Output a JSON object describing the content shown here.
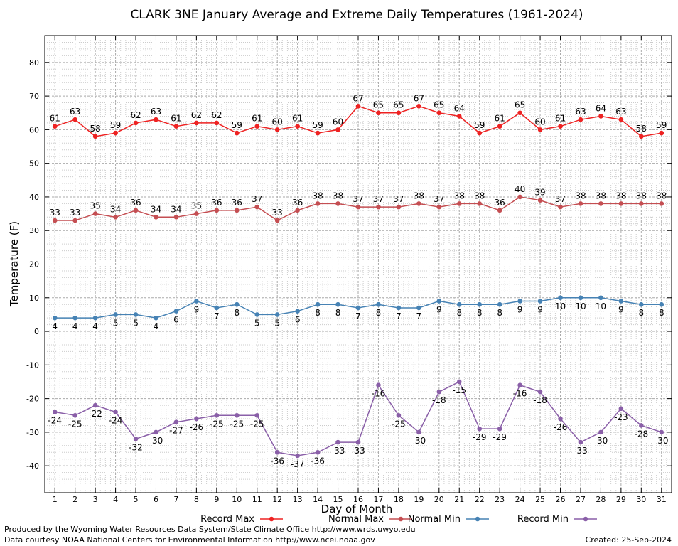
{
  "chart_data": {
    "type": "line",
    "title": "CLARK 3NE January Average and Extreme Daily Temperatures (1961-2024)",
    "xlabel": "Day of Month",
    "ylabel": "Temperature (F)",
    "xlim": [
      0.5,
      31.5
    ],
    "ylim": [
      -48,
      88
    ],
    "yticks": [
      -40,
      -30,
      -20,
      -10,
      0,
      10,
      20,
      30,
      40,
      50,
      60,
      70,
      80
    ],
    "x": [
      1,
      2,
      3,
      4,
      5,
      6,
      7,
      8,
      9,
      10,
      11,
      12,
      13,
      14,
      15,
      16,
      17,
      18,
      19,
      20,
      21,
      22,
      23,
      24,
      25,
      26,
      27,
      28,
      29,
      30,
      31
    ],
    "grid": true,
    "legend_position": "bottom",
    "series": [
      {
        "name": "Record Max",
        "color": "#ee2222",
        "values": [
          61,
          63,
          58,
          59,
          62,
          63,
          61,
          62,
          62,
          59,
          61,
          60,
          61,
          59,
          60,
          67,
          65,
          65,
          67,
          65,
          64,
          59,
          61,
          65,
          60,
          61,
          63,
          64,
          63,
          58,
          59
        ]
      },
      {
        "name": "Normal Max",
        "color": "#c44e52",
        "values": [
          33,
          33,
          35,
          34,
          36,
          34,
          34,
          35,
          36,
          36,
          37,
          33,
          36,
          38,
          38,
          37,
          37,
          37,
          38,
          37,
          38,
          38,
          36,
          40,
          39,
          37,
          38,
          38,
          38,
          38,
          38
        ]
      },
      {
        "name": "Normal Min",
        "color": "#4682b4",
        "values": [
          4,
          4,
          4,
          5,
          5,
          4,
          6,
          9,
          7,
          8,
          5,
          5,
          6,
          8,
          8,
          7,
          8,
          7,
          7,
          9,
          8,
          8,
          8,
          9,
          9,
          10,
          10,
          10,
          9,
          8,
          8
        ]
      },
      {
        "name": "Record Min",
        "color": "#8a5fa8",
        "values": [
          -24,
          -25,
          -22,
          -24,
          -32,
          -30,
          -27,
          -26,
          -25,
          -25,
          -25,
          -36,
          -37,
          -36,
          -33,
          -33,
          -16,
          -25,
          -30,
          -18,
          -15,
          -29,
          -29,
          -16,
          -18,
          -26,
          -33,
          -30,
          -23,
          -28,
          -30
        ]
      }
    ]
  },
  "footer": {
    "produced_by": "Produced by the Wyoming Water Resources Data System/State Climate Office http://www.wrds.uwyo.edu",
    "courtesy": "Data courtesy NOAA National Centers for Environmental Information http://www.ncei.noaa.gov",
    "created": "Created:  25-Sep-2024"
  }
}
